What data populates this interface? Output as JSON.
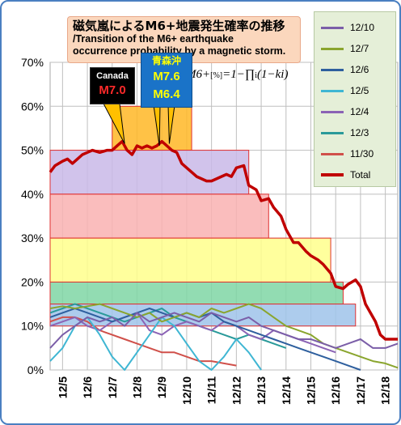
{
  "title": {
    "main": "磁気嵐によるM6+地震発生確率の推移",
    "sub_line1": "/Transition of the M6+ earthquake",
    "sub_line2": "occurrence probability by a magnetic storm."
  },
  "formula": {
    "lhs": "M6+",
    "unit": "[%]",
    "rhs": "=1−∏",
    "index": "i",
    "term": "(1−ki)"
  },
  "callouts": {
    "canada": {
      "name": "Canada",
      "magnitude": "M7.0"
    },
    "aomori": {
      "name": "青森沖",
      "magnitude_1": "M7.6",
      "magnitude_2": "M6.4"
    }
  },
  "colors": {
    "total": "#c00000",
    "12/10": "#7b5ea8",
    "12/7": "#8aa52e",
    "12/6": "#2e5f9e",
    "12/5": "#3fb6d3",
    "12/4": "#8b63b5",
    "12/3": "#2a9a9a",
    "11/30": "#d0504a",
    "plot_border": "#aaaaaa",
    "grid": "#bfbfbf"
  },
  "chart_data": {
    "type": "line",
    "title": "磁気嵐によるM6+地震発生確率の推移",
    "xlabel": "",
    "ylabel": "",
    "ylim": [
      0,
      70
    ],
    "yticks": [
      "0%",
      "10%",
      "20%",
      "30%",
      "40%",
      "50%",
      "60%",
      "70%"
    ],
    "ytick_values": [
      0,
      10,
      20,
      30,
      40,
      50,
      60,
      70
    ],
    "xlim": [
      4.5,
      18.5
    ],
    "xtick_labels": [
      "12/5",
      "12/6",
      "12/7",
      "12/8",
      "12/9",
      "12/10",
      "12/11",
      "12/12",
      "12/13",
      "12/14",
      "12/15",
      "12/16",
      "12/17",
      "12/18"
    ],
    "xtick_values": [
      5,
      6,
      7,
      8,
      9,
      10,
      11,
      12,
      13,
      14,
      15,
      16,
      17,
      18
    ],
    "legend": [
      "12/10",
      "12/7",
      "12/6",
      "12/5",
      "12/4",
      "12/3",
      "11/30",
      "Total"
    ],
    "bands": [
      {
        "x0": 7.0,
        "x1": 10.2,
        "y0": 50,
        "y1": 60,
        "color": "#ffb726"
      },
      {
        "x0": 4.5,
        "x1": 12.5,
        "y0": 40,
        "y1": 50,
        "color": "#c9b8e8"
      },
      {
        "x0": 4.5,
        "x1": 13.3,
        "y0": 30,
        "y1": 40,
        "color": "#f9b2b2"
      },
      {
        "x0": 4.5,
        "x1": 15.8,
        "y0": 20,
        "y1": 30,
        "color": "#ffff8c"
      },
      {
        "x0": 4.5,
        "x1": 16.3,
        "y0": 15,
        "y1": 20,
        "color": "#7fd6a5"
      },
      {
        "x0": 4.5,
        "x1": 16.8,
        "y0": 10,
        "y1": 15,
        "color": "#9fc3ea"
      }
    ],
    "series": [
      {
        "name": "Total",
        "x": [
          4.5,
          4.7,
          5.0,
          5.2,
          5.4,
          5.6,
          5.8,
          6.0,
          6.2,
          6.5,
          6.8,
          7.0,
          7.2,
          7.4,
          7.6,
          7.8,
          8.0,
          8.2,
          8.4,
          8.6,
          8.8,
          9.0,
          9.2,
          9.4,
          9.6,
          9.8,
          10.0,
          10.2,
          10.4,
          10.6,
          10.8,
          11.0,
          11.2,
          11.4,
          11.6,
          11.8,
          12.0,
          12.3,
          12.5,
          12.8,
          13.0,
          13.3,
          13.5,
          13.8,
          14.0,
          14.3,
          14.5,
          14.8,
          15.0,
          15.3,
          15.5,
          15.8,
          16.0,
          16.3,
          16.5,
          16.8,
          17.0,
          17.2,
          17.4,
          17.6,
          17.8,
          18.0,
          18.3,
          18.5
        ],
        "y": [
          45,
          46.5,
          47.5,
          48,
          47,
          48,
          49,
          49.5,
          50,
          49.5,
          50,
          50,
          51,
          52,
          50,
          49,
          51,
          50.5,
          51,
          50.5,
          51,
          52,
          51,
          50,
          49.5,
          47,
          46,
          45,
          44,
          43.5,
          43,
          43,
          43.5,
          44,
          44.5,
          44,
          46,
          46.5,
          42,
          41,
          38.5,
          39,
          37,
          35,
          32,
          29,
          29,
          27,
          26,
          25,
          24,
          22,
          19,
          18.5,
          19.5,
          20.5,
          19,
          15,
          13,
          11,
          8,
          7,
          7,
          7
        ]
      },
      {
        "name": "12/10",
        "x": [
          4.5,
          5,
          5.5,
          6,
          6.5,
          7,
          7.5,
          8,
          8.5,
          9,
          9.5,
          10,
          10.5,
          11,
          11.5,
          12,
          12.5,
          13,
          13.5,
          14,
          14.5,
          15,
          15.5,
          16,
          16.5,
          17,
          17.5,
          18,
          18.5
        ],
        "y": [
          5,
          8,
          10,
          12,
          11,
          12,
          10,
          13,
          11,
          12,
          13,
          12,
          11,
          13,
          12,
          11,
          12,
          10,
          9,
          8,
          7,
          7,
          6,
          5,
          6,
          7,
          5,
          5,
          6
        ]
      },
      {
        "name": "12/7",
        "x": [
          4.5,
          5,
          5.5,
          6,
          6.5,
          7,
          7.5,
          8,
          8.5,
          9,
          9.5,
          10,
          10.5,
          11,
          11.5,
          12,
          12.5,
          13,
          13.5,
          14,
          14.5,
          15,
          15.5,
          16,
          16.5,
          17,
          17.5,
          18,
          18.5
        ],
        "y": [
          14,
          14.5,
          14,
          14.5,
          15,
          14,
          13,
          12,
          13,
          11,
          12,
          13,
          12,
          14,
          13,
          14,
          15,
          14,
          12,
          10,
          9,
          8,
          6,
          5,
          4,
          3,
          2,
          1.5,
          0.5
        ]
      },
      {
        "name": "12/6",
        "x": [
          4.5,
          5,
          5.5,
          6,
          6.5,
          7,
          7.5,
          8,
          8.5,
          9,
          9.5,
          10,
          10.5,
          11,
          11.5,
          12,
          12.5,
          13,
          13.5,
          14,
          14.5,
          15,
          15.5,
          16,
          16.5,
          17
        ],
        "y": [
          12,
          13,
          14,
          13,
          12,
          11,
          12,
          13,
          14,
          13,
          12,
          13,
          12,
          13,
          11,
          10,
          9,
          8,
          7,
          6,
          5,
          4,
          3,
          2,
          1,
          0
        ]
      },
      {
        "name": "12/5",
        "x": [
          4.5,
          5,
          5.5,
          6,
          6.5,
          7,
          7.5,
          8,
          8.5,
          9,
          9.5,
          10,
          10.5,
          11,
          11.5,
          12,
          12.5,
          13
        ],
        "y": [
          2,
          5,
          10,
          12,
          8,
          3,
          0,
          4,
          8,
          12,
          10,
          6,
          2,
          0,
          3,
          7,
          4,
          0
        ]
      },
      {
        "name": "12/4",
        "x": [
          4.5,
          5,
          5.5,
          6,
          6.5,
          7,
          7.5,
          8,
          8.5,
          9,
          9.5,
          10,
          10.5,
          11,
          11.5,
          12,
          12.5,
          13,
          13.5,
          14,
          14.5,
          15,
          15.5,
          16
        ],
        "y": [
          10,
          11,
          12,
          10,
          9,
          11,
          12,
          13,
          9,
          8,
          10,
          11,
          10,
          9,
          11,
          10,
          8,
          7,
          9,
          8,
          7,
          6,
          5,
          4
        ]
      },
      {
        "name": "12/3",
        "x": [
          4.5,
          5,
          5.5,
          6,
          6.5,
          7,
          7.5,
          8,
          8.5,
          9,
          9.5,
          10,
          10.5,
          11,
          11.5,
          12,
          12.5,
          13,
          13.5,
          14
        ],
        "y": [
          13,
          14,
          15,
          14,
          13,
          12,
          11,
          12,
          13,
          14,
          12,
          11,
          10,
          9,
          8,
          7,
          8,
          7,
          6,
          5
        ]
      },
      {
        "name": "11/30",
        "x": [
          4.5,
          5,
          5.5,
          6,
          6.5,
          7,
          7.5,
          8,
          8.5,
          9,
          9.5,
          10,
          10.5,
          11,
          11.5,
          12
        ],
        "y": [
          11,
          12,
          12,
          11,
          9,
          8,
          7,
          6,
          5,
          4,
          4,
          3,
          2,
          2,
          1.5,
          1
        ]
      }
    ]
  }
}
